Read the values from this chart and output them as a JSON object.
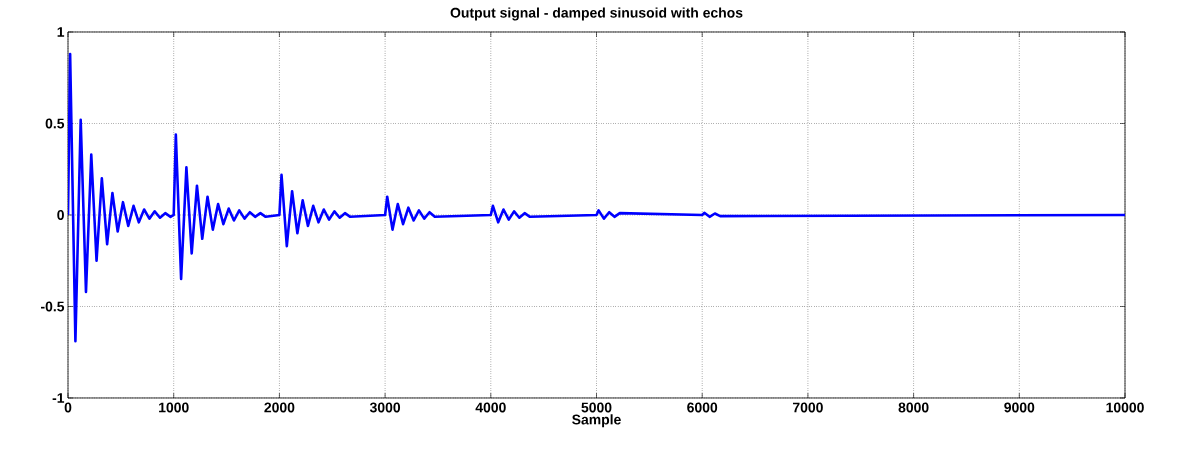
{
  "chart_data": {
    "type": "line",
    "title": "Output signal - damped sinusoid with echos",
    "xlabel": "Sample",
    "x": [
      0,
      20,
      70,
      120,
      170,
      220,
      270,
      320,
      370,
      420,
      470,
      520,
      570,
      620,
      670,
      720,
      770,
      820,
      870,
      920,
      970,
      1000,
      1020,
      1070,
      1120,
      1170,
      1220,
      1270,
      1320,
      1370,
      1420,
      1470,
      1520,
      1570,
      1620,
      1670,
      1720,
      1770,
      1820,
      1870,
      2000,
      2020,
      2070,
      2120,
      2170,
      2220,
      2270,
      2320,
      2370,
      2420,
      2470,
      2520,
      2570,
      2620,
      2670,
      3000,
      3020,
      3070,
      3120,
      3170,
      3220,
      3270,
      3320,
      3370,
      3420,
      3470,
      4000,
      4020,
      4070,
      4120,
      4170,
      4220,
      4270,
      4320,
      4370,
      5000,
      5020,
      5070,
      5120,
      5170,
      5220,
      6000,
      6020,
      6070,
      6120,
      6170,
      10000
    ],
    "series": [
      {
        "color": "#0000ff",
        "values": [
          0,
          0.88,
          -0.69,
          0.52,
          -0.42,
          0.33,
          -0.25,
          0.2,
          -0.16,
          0.12,
          -0.09,
          0.07,
          -0.06,
          0.05,
          -0.04,
          0.03,
          -0.02,
          0.02,
          -0.015,
          0.01,
          -0.01,
          0,
          0.44,
          -0.35,
          0.26,
          -0.21,
          0.16,
          -0.13,
          0.1,
          -0.08,
          0.06,
          -0.05,
          0.035,
          -0.03,
          0.025,
          -0.02,
          0.015,
          -0.01,
          0.01,
          -0.01,
          0,
          0.22,
          -0.17,
          0.13,
          -0.1,
          0.08,
          -0.06,
          0.05,
          -0.04,
          0.03,
          -0.025,
          0.02,
          -0.015,
          0.01,
          -0.01,
          0,
          0.1,
          -0.08,
          0.06,
          -0.05,
          0.04,
          -0.03,
          0.025,
          -0.02,
          0.015,
          -0.01,
          0,
          0.05,
          -0.04,
          0.03,
          -0.025,
          0.02,
          -0.015,
          0.01,
          -0.01,
          0,
          0.025,
          -0.02,
          0.015,
          -0.01,
          0.01,
          0,
          0.012,
          -0.01,
          0.008,
          -0.006,
          0
        ]
      }
    ],
    "xlim": [
      0,
      10000
    ],
    "ylim": [
      -1,
      1
    ],
    "xticks": [
      0,
      1000,
      2000,
      3000,
      4000,
      5000,
      6000,
      7000,
      8000,
      9000,
      10000
    ],
    "yticks": [
      -1,
      -0.5,
      0,
      0.5,
      1
    ],
    "grid": true,
    "line_style": "solid",
    "marker": "none"
  }
}
